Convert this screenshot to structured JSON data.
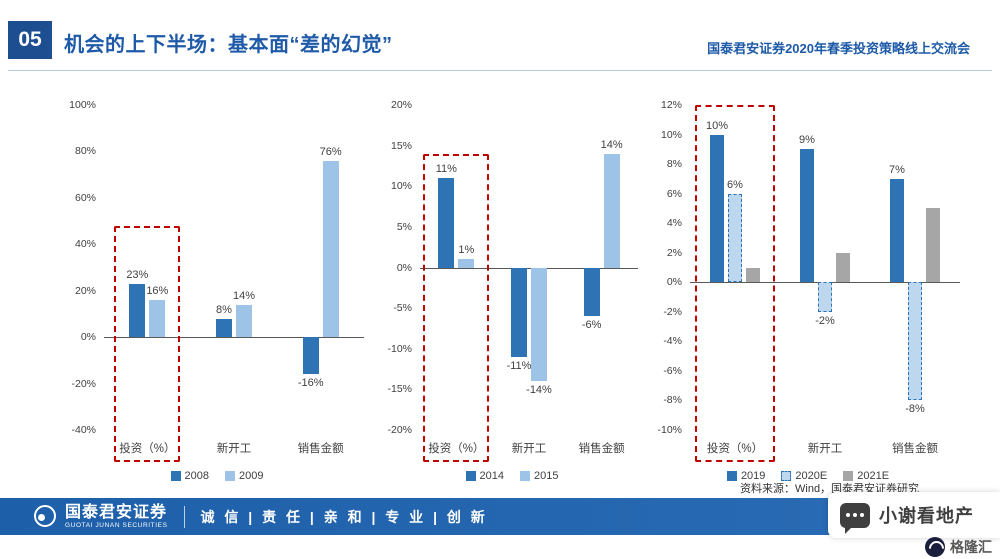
{
  "header": {
    "badge": "05",
    "title": "机会的上下半场：基本面“差的幻觉”",
    "right_title": "国泰君安证券2020年春季投资策略线上交流会"
  },
  "chart_data": [
    {
      "type": "bar",
      "categories": [
        "投资（%）",
        "新开工",
        "销售金额"
      ],
      "series": [
        {
          "name": "2008",
          "style": "dark",
          "values": [
            23,
            8,
            -16
          ]
        },
        {
          "name": "2009",
          "style": "light",
          "values": [
            16,
            14,
            76
          ]
        }
      ],
      "ylim": [
        -40,
        100
      ],
      "ytick_step": 20,
      "grid": false,
      "legend_position": "bottom",
      "highlight_category": 0,
      "highlight_top_value": 48
    },
    {
      "type": "bar",
      "categories": [
        "投资（%）",
        "新开工",
        "销售金额"
      ],
      "series": [
        {
          "name": "2014",
          "style": "dark",
          "values": [
            11,
            -11,
            -6
          ]
        },
        {
          "name": "2015",
          "style": "light",
          "values": [
            1,
            -14,
            14
          ]
        }
      ],
      "ylim": [
        -20,
        20
      ],
      "ytick_step": 5,
      "grid": false,
      "legend_position": "bottom",
      "highlight_category": 0,
      "highlight_top_value": 14
    },
    {
      "type": "bar",
      "categories": [
        "投资（%）",
        "新开工",
        "销售金额"
      ],
      "series": [
        {
          "name": "2019",
          "style": "dark",
          "values": [
            10,
            9,
            7
          ]
        },
        {
          "name": "2020E",
          "style": "dashed",
          "values": [
            6,
            -2,
            -8
          ]
        },
        {
          "name": "2021E",
          "style": "gray",
          "values": [
            1,
            2,
            5
          ],
          "show_labels": false
        }
      ],
      "ylim": [
        -10,
        12
      ],
      "ytick_step": 2,
      "grid": false,
      "legend_position": "bottom",
      "highlight_category": 0,
      "highlight_top_value": 12
    }
  ],
  "source": "资料来源：Wind，国泰君安证券研究",
  "footer": {
    "logo_cn": "国泰君安证券",
    "logo_en": "GUOTAI JUNAN SECURITIES",
    "slogan": "诚 信 | 责 任 | 亲 和 | 专 业 | 创 新"
  },
  "watermarks": {
    "wechat": "小谢看地产",
    "site": "格隆汇"
  },
  "colors": {
    "primary_blue": "#1e5aa8",
    "badge_blue": "#1d4f90",
    "bar_dark": "#2e74b5",
    "bar_light": "#9dc3e6",
    "bar_gray": "#a6a6a6",
    "bar_dashed_fill": "#bdd7ee",
    "highlight_red": "#c00000",
    "footer_blue": "#1e5fa9",
    "axis_text": "#404040"
  }
}
